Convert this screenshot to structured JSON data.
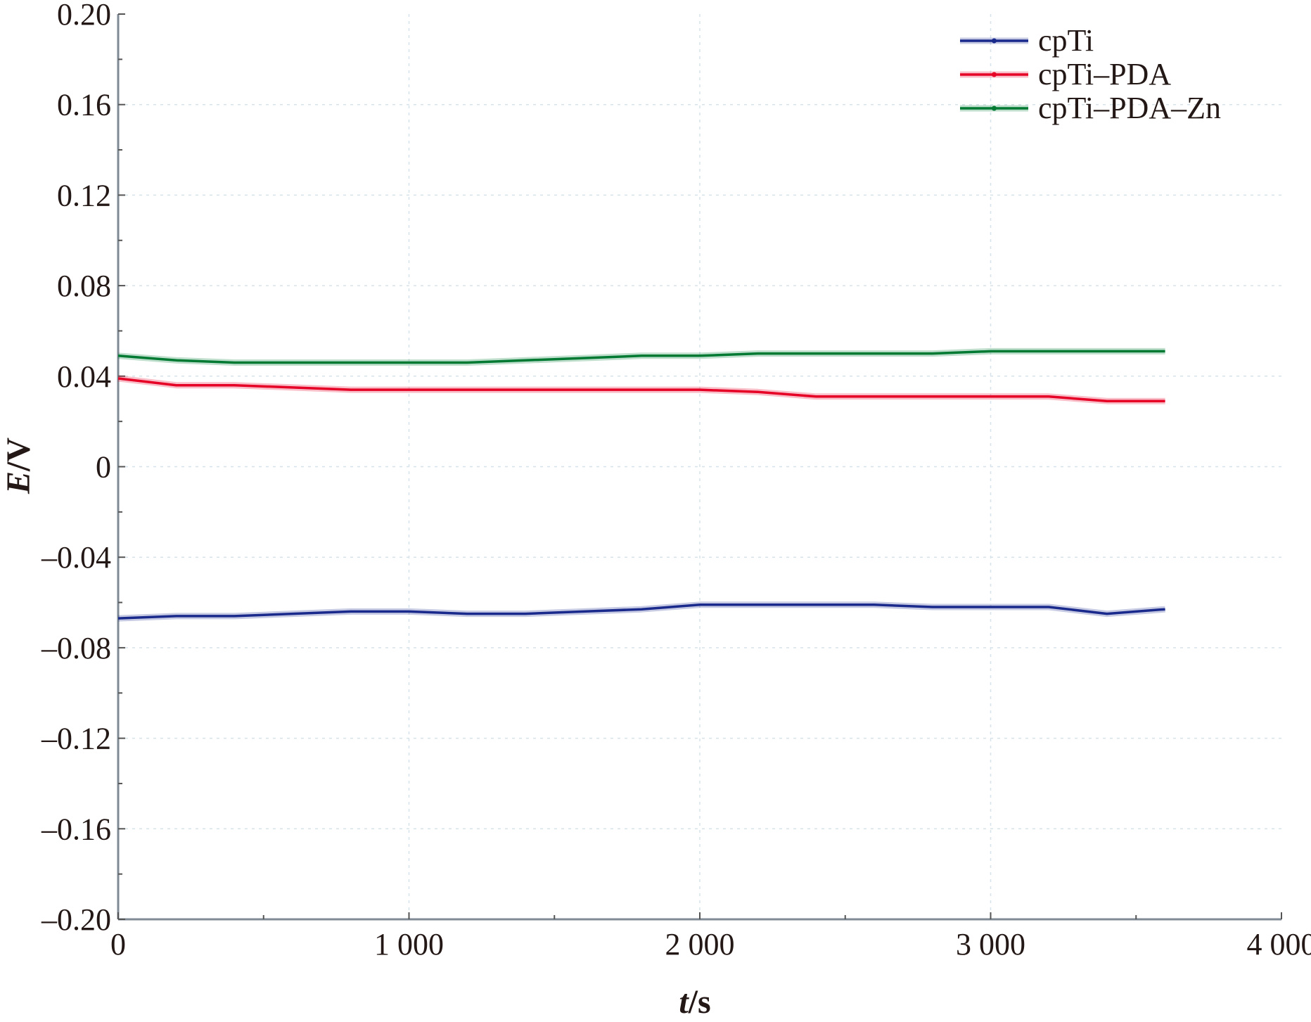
{
  "chart_data": {
    "type": "line",
    "xlabel_italic": "t",
    "xlabel_unit": "/s",
    "ylabel_italic": "E",
    "ylabel_unit": "/V",
    "xlim": [
      0,
      4000
    ],
    "ylim": [
      -0.2,
      0.2
    ],
    "x_ticks": [
      0,
      1000,
      2000,
      3000,
      4000
    ],
    "x_tick_labels": [
      "0",
      "1 000",
      "2 000",
      "3 000",
      "4 000"
    ],
    "y_ticks": [
      0.2,
      0.16,
      0.12,
      0.08,
      0.04,
      0,
      -0.04,
      -0.08,
      -0.12,
      -0.16,
      -0.2
    ],
    "y_tick_labels": [
      "0.20",
      "0.16",
      "0.12",
      "0.08",
      "0.04",
      "0",
      "–0.04",
      "–0.08",
      "–0.12",
      "–0.16",
      "–0.20"
    ],
    "grid": true,
    "legend_position": "top-right",
    "series": [
      {
        "name": "cpTi",
        "color": "#1a2a8c",
        "x": [
          0,
          200,
          400,
          600,
          800,
          1000,
          1200,
          1400,
          1600,
          1800,
          2000,
          2200,
          2400,
          2600,
          2800,
          3000,
          3200,
          3400,
          3600
        ],
        "y": [
          -0.067,
          -0.066,
          -0.066,
          -0.065,
          -0.064,
          -0.064,
          -0.065,
          -0.065,
          -0.064,
          -0.063,
          -0.061,
          -0.061,
          -0.061,
          -0.061,
          -0.062,
          -0.062,
          -0.062,
          -0.065,
          -0.063
        ]
      },
      {
        "name": "cpTi–PDA",
        "color": "#e60026",
        "x": [
          0,
          200,
          400,
          600,
          800,
          1000,
          1200,
          1400,
          1600,
          1800,
          2000,
          2200,
          2400,
          2600,
          2800,
          3000,
          3200,
          3400,
          3600
        ],
        "y": [
          0.039,
          0.036,
          0.036,
          0.035,
          0.034,
          0.034,
          0.034,
          0.034,
          0.034,
          0.034,
          0.034,
          0.033,
          0.031,
          0.031,
          0.031,
          0.031,
          0.031,
          0.029,
          0.029
        ]
      },
      {
        "name": "cpTi–PDA–Zn",
        "color": "#007a33",
        "x": [
          0,
          200,
          400,
          600,
          800,
          1000,
          1200,
          1400,
          1600,
          1800,
          2000,
          2200,
          2400,
          2600,
          2800,
          3000,
          3200,
          3400,
          3600
        ],
        "y": [
          0.049,
          0.047,
          0.046,
          0.046,
          0.046,
          0.046,
          0.046,
          0.047,
          0.048,
          0.049,
          0.049,
          0.05,
          0.05,
          0.05,
          0.05,
          0.051,
          0.051,
          0.051,
          0.051
        ]
      }
    ]
  }
}
